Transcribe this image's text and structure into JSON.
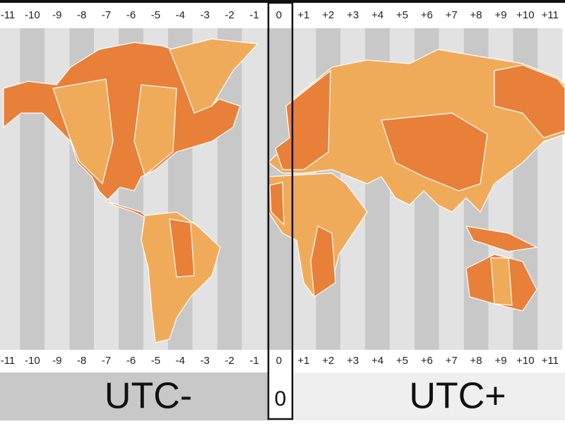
{
  "top_labels": [
    "-11",
    "-10",
    "-9",
    "-8",
    "-7",
    "-6",
    "-5",
    "-4",
    "-3",
    "-2",
    "-1",
    "0",
    "+1",
    "+2",
    "+3",
    "+4",
    "+5",
    "+6",
    "+7",
    "+8",
    "+9",
    "+10",
    "+11"
  ],
  "bottom_labels": [
    "-11",
    "-10",
    "-9",
    "-8",
    "-7",
    "-6",
    "-5",
    "-4",
    "-3",
    "-2",
    "-1",
    "0",
    "+1",
    "+2",
    "+3",
    "+4",
    "+5",
    "+6",
    "+7",
    "+8",
    "+9",
    "+10",
    "+11"
  ],
  "captions": {
    "left": "UTC-",
    "center": "0",
    "right": "UTC+"
  }
}
